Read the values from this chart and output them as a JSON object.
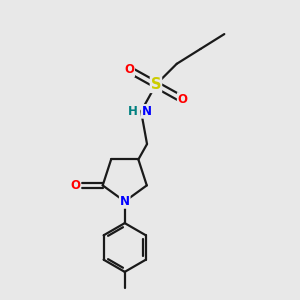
{
  "background_color": "#e8e8e8",
  "bond_color": "#1a1a1a",
  "bond_width": 1.6,
  "atom_colors": {
    "S": "#cccc00",
    "O": "#ff0000",
    "N": "#0000ff",
    "H": "#008080",
    "C": "#1a1a1a"
  },
  "font_size_atom": 8.5,
  "fig_size": [
    3.0,
    3.0
  ],
  "dpi": 100
}
